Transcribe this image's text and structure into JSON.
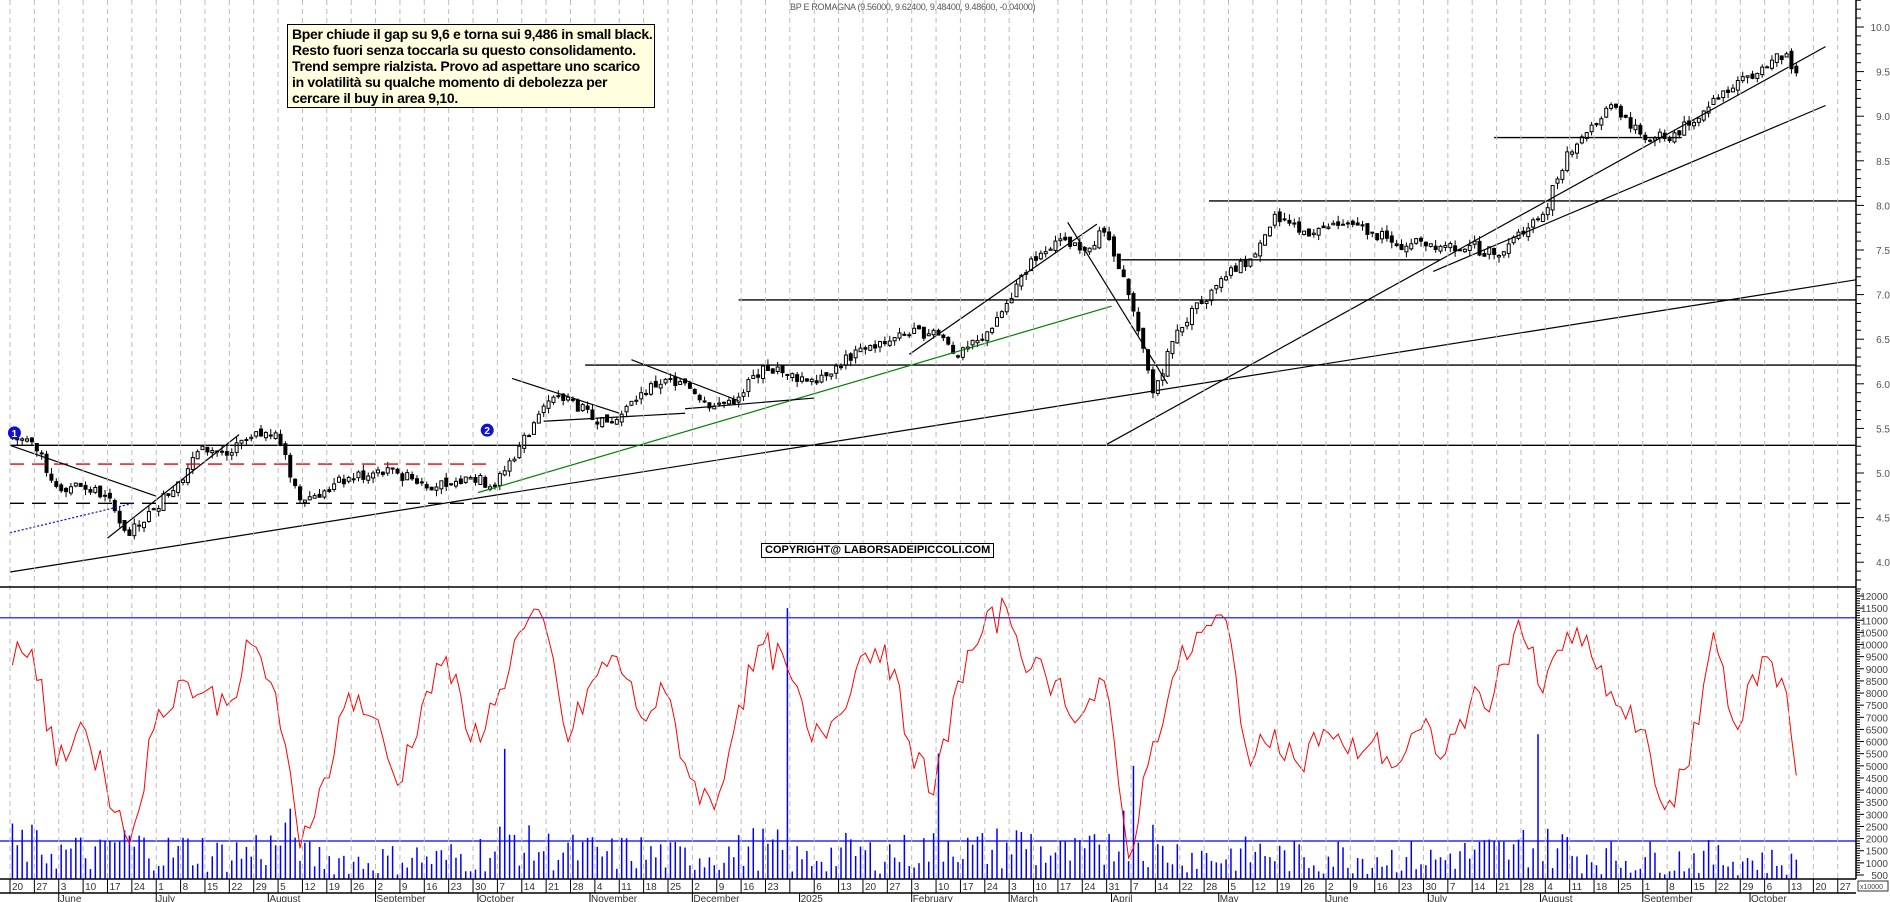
{
  "header": {
    "title": "BP E ROMAGNA (9.56000, 9.62400, 9.48400, 9.48600, -0.04000)"
  },
  "note": {
    "lines": [
      "Bper chiude il gap su 9,6 e torna sui 9,486 in small black.",
      "Resto fuori senza toccarla su questo consolidamento.",
      "Trend sempre rialzista. Provo ad aspettare uno scarico",
      "in volatilità su qualche momento di debolezza per",
      "cercare il buy in area 9,10."
    ]
  },
  "copyright": "COPYRIGHT@ LABORSADEIPICCOLI.COM",
  "markers": [
    {
      "label": "1",
      "week": 0.1,
      "price": 5.45
    },
    {
      "label": "2",
      "week": 19.5,
      "price": 5.48
    }
  ],
  "chart_data": [
    {
      "type": "candlestick",
      "title": "BP E ROMAGNA",
      "ylim": [
        3.7,
        10.3
      ],
      "yticks": [
        "4.0",
        "4.5",
        "5.0",
        "5.5",
        "6.0",
        "6.5",
        "7.0",
        "7.5",
        "8.0",
        "8.5",
        "9.0",
        "9.5",
        "10.0"
      ],
      "x_unit": "week index (0 = week of 2024-05-20)",
      "weekly_close": [
        5.35,
        4.85,
        4.85,
        4.75,
        4.3,
        4.6,
        4.9,
        5.3,
        5.2,
        5.4,
        5.45,
        4.7,
        4.8,
        4.95,
        5.0,
        5.0,
        4.9,
        4.85,
        4.95,
        4.85,
        5.3,
        5.75,
        5.85,
        5.6,
        5.6,
        5.9,
        6.05,
        5.95,
        5.75,
        5.85,
        6.2,
        6.1,
        6.05,
        6.2,
        6.4,
        6.45,
        6.55,
        6.6,
        6.3,
        6.5,
        6.9,
        7.4,
        7.6,
        7.5,
        7.7,
        7.0,
        5.9,
        6.6,
        6.9,
        7.2,
        7.4,
        7.9,
        7.7,
        7.75,
        7.8,
        7.7,
        7.55,
        7.6,
        7.55,
        7.55,
        7.45,
        7.7,
        7.9,
        8.6,
        8.9,
        9.1,
        8.8,
        8.75,
        8.9,
        9.2,
        9.4,
        9.55,
        9.7,
        9.486
      ],
      "last_bar": {
        "open": 9.56,
        "high": 9.624,
        "low": 9.484,
        "close": 9.486,
        "change": -0.04
      },
      "hlines": [
        {
          "price": 5.31,
          "from": 0,
          "to": 77,
          "style": "solid",
          "color": "#000000"
        },
        {
          "price": 4.66,
          "from": 0,
          "to": 77,
          "style": "dashed",
          "color": "#000000"
        },
        {
          "price": 5.1,
          "from": 0,
          "to": 19.8,
          "style": "dashed",
          "color": "#e00000"
        },
        {
          "price": 6.21,
          "from": 23.6,
          "to": 77,
          "style": "solid",
          "color": "#000000"
        },
        {
          "price": 6.94,
          "from": 29.9,
          "to": 77,
          "style": "solid",
          "color": "#000000"
        },
        {
          "price": 7.39,
          "from": 45.6,
          "to": 58.7,
          "style": "solid",
          "color": "#000000"
        },
        {
          "price": 8.05,
          "from": 49.2,
          "to": 77,
          "style": "solid",
          "color": "#000000"
        },
        {
          "price": 8.76,
          "from": 60.9,
          "to": 68.6,
          "style": "solid",
          "color": "#000000"
        }
      ],
      "trendlines": [
        {
          "from": [
            0,
            3.89
          ],
          "to": [
            77,
            7.22
          ],
          "color": "#000000",
          "style": "solid"
        },
        {
          "from": [
            0,
            5.31
          ],
          "to": [
            6.0,
            4.74
          ],
          "color": "#000000",
          "style": "solid"
        },
        {
          "from": [
            4.0,
            4.27
          ],
          "to": [
            9.4,
            5.43
          ],
          "color": "#000000",
          "style": "solid"
        },
        {
          "from": [
            0,
            4.33
          ],
          "to": [
            5.05,
            4.66
          ],
          "color": "#0000ff",
          "style": "dotted"
        },
        {
          "from": [
            19.2,
            4.78
          ],
          "to": [
            45.2,
            6.87
          ],
          "color": "#008000",
          "style": "solid"
        },
        {
          "from": [
            20.6,
            6.06
          ],
          "to": [
            25.0,
            5.67
          ],
          "color": "#000000",
          "style": "solid"
        },
        {
          "from": [
            21.9,
            5.58
          ],
          "to": [
            27.7,
            5.67
          ],
          "color": "#000000",
          "style": "solid"
        },
        {
          "from": [
            25.5,
            6.27
          ],
          "to": [
            29.9,
            5.81
          ],
          "color": "#000000",
          "style": "solid"
        },
        {
          "from": [
            27.7,
            5.72
          ],
          "to": [
            33.0,
            5.84
          ],
          "color": "#000000",
          "style": "solid"
        },
        {
          "from": [
            36.9,
            6.33
          ],
          "to": [
            44.6,
            7.79
          ],
          "color": "#000000",
          "style": "solid"
        },
        {
          "from": [
            43.4,
            7.81
          ],
          "to": [
            47.5,
            6.0
          ],
          "color": "#000000",
          "style": "solid"
        },
        {
          "from": [
            45.0,
            5.32
          ],
          "to": [
            74.5,
            9.78
          ],
          "color": "#000000",
          "style": "solid"
        },
        {
          "from": [
            58.4,
            7.26
          ],
          "to": [
            74.5,
            9.12
          ],
          "color": "#000000",
          "style": "solid"
        }
      ]
    },
    {
      "type": "line+bar",
      "ylim": [
        0,
        12300
      ],
      "yticks": [
        "500",
        "1000",
        "1500",
        "2000",
        "2500",
        "3000",
        "3500",
        "4000",
        "4500",
        "5000",
        "5500",
        "6000",
        "6500",
        "7000",
        "7500",
        "8000",
        "8500",
        "9000",
        "9500",
        "10000",
        "10500",
        "11000",
        "11500",
        "12000"
      ],
      "unit_label": "x10000",
      "oscillator_color": "#ff0000",
      "oscillator_weekly": [
        9800,
        5000,
        6800,
        4500,
        1800,
        6500,
        8500,
        8000,
        7500,
        10000,
        8000,
        1600,
        4500,
        8000,
        7000,
        4200,
        7500,
        9500,
        6000,
        7500,
        10500,
        11000,
        6000,
        8500,
        9500,
        7000,
        8000,
        4500,
        3200,
        7500,
        10000,
        9000,
        6000,
        7000,
        9500,
        10000,
        6000,
        3800,
        8500,
        10500,
        11500,
        9000,
        8500,
        7000,
        8500,
        1200,
        6000,
        9000,
        10500,
        11000,
        5000,
        6500,
        5000,
        6500,
        5500,
        6000,
        5000,
        6500,
        5500,
        7500,
        8000,
        11000,
        8000,
        10500,
        9500,
        7500,
        6500,
        3200,
        5000,
        10500,
        6500,
        9500,
        8000,
        4600
      ],
      "volume_color": "#0000ff",
      "volume_weekly": [
        1800,
        1600,
        1500,
        1400,
        1900,
        1700,
        1500,
        1600,
        1400,
        1500,
        1700,
        2200,
        1300,
        1200,
        1100,
        1200,
        1300,
        1200,
        1300,
        1500,
        2100,
        1700,
        1600,
        1500,
        1400,
        1500,
        1400,
        1300,
        1400,
        1500,
        1700,
        1600,
        1200,
        1400,
        1500,
        1400,
        1500,
        1600,
        2100,
        1600,
        1700,
        1900,
        1500,
        1400,
        1500,
        2400,
        2000,
        1500,
        1400,
        1300,
        1400,
        1500,
        1300,
        1200,
        1400,
        1300,
        1300,
        1300,
        1200,
        1400,
        1500,
        1500,
        1900,
        1700,
        1400,
        1300,
        1200,
        1300,
        1200,
        1300,
        1200,
        1200,
        1100,
        1000
      ],
      "volume_spikes": [
        {
          "week": 20.2,
          "value": 5700
        },
        {
          "week": 31.8,
          "value": 11500
        },
        {
          "week": 38.0,
          "value": 5500
        },
        {
          "week": 46.0,
          "value": 5000
        },
        {
          "week": 62.6,
          "value": 6300
        }
      ],
      "hlines": [
        {
          "value": 11100,
          "color": "#0000ff"
        },
        {
          "value": 1900,
          "color": "#0000ff"
        }
      ]
    }
  ],
  "xaxis": {
    "day_labels": [
      "20",
      "27",
      "3",
      "10",
      "17",
      "24",
      "1",
      "8",
      "15",
      "22",
      "29",
      "5",
      "12",
      "19",
      "26",
      "2",
      "9",
      "16",
      "23",
      "30",
      "7",
      "14",
      "21",
      "28",
      "4",
      "11",
      "18",
      "25",
      "2",
      "9",
      "16",
      "23",
      "",
      "6",
      "13",
      "20",
      "27",
      "3",
      "10",
      "17",
      "24",
      "3",
      "10",
      "17",
      "24",
      "31",
      "7",
      "14",
      "22",
      "28",
      "5",
      "12",
      "19",
      "26",
      "2",
      "9",
      "16",
      "23",
      "30",
      "7",
      "14",
      "21",
      "28",
      "4",
      "11",
      "18",
      "25",
      "1",
      "8",
      "15",
      "22",
      "29",
      "6",
      "13",
      "20",
      "27"
    ],
    "months": [
      {
        "label": "June",
        "week": 2
      },
      {
        "label": "July",
        "week": 6
      },
      {
        "label": "August",
        "week": 10.6
      },
      {
        "label": "September",
        "week": 15
      },
      {
        "label": "October",
        "week": 19.2
      },
      {
        "label": "November",
        "week": 23.8
      },
      {
        "label": "December",
        "week": 28
      },
      {
        "label": "2025",
        "week": 32.4
      },
      {
        "label": "February",
        "week": 37
      },
      {
        "label": "March",
        "week": 41
      },
      {
        "label": "April",
        "week": 45.2
      },
      {
        "label": "May",
        "week": 49.6
      },
      {
        "label": "June",
        "week": 54
      },
      {
        "label": "July",
        "week": 58.2
      },
      {
        "label": "August",
        "week": 62.8
      },
      {
        "label": "September",
        "week": 67
      },
      {
        "label": "October",
        "week": 71.4
      }
    ]
  }
}
